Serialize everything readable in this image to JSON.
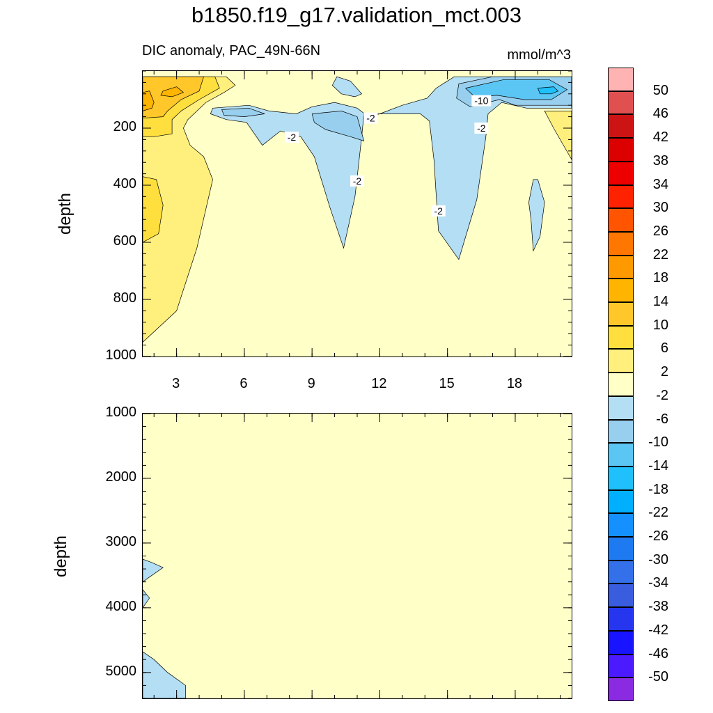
{
  "title": "b1850.f19_g17.validation_mct.003",
  "chart_data": [
    {
      "type": "heatmap",
      "panel": "upper",
      "left_title": "DIC anomaly, PAC_49N-66N",
      "right_title": "mmol/m^3",
      "ylabel": "depth",
      "xlabel": "",
      "xlim": [
        1.5,
        20.5
      ],
      "ylim": [
        1000,
        0
      ],
      "x_ticks": [
        "3",
        "6",
        "9",
        "12",
        "15",
        "18"
      ],
      "x_tick_values": [
        3,
        6,
        9,
        12,
        15,
        18
      ],
      "y_ticks": [
        "200",
        "400",
        "600",
        "800",
        "1000"
      ],
      "y_tick_values": [
        200,
        400,
        600,
        800,
        1000
      ],
      "contour_labels": [
        {
          "text": "-2",
          "x": 8.1,
          "y": 232
        },
        {
          "text": "-2",
          "x": 11.6,
          "y": 165
        },
        {
          "text": "-10",
          "x": 16.5,
          "y": 104
        },
        {
          "text": "-2",
          "x": 16.5,
          "y": 200
        },
        {
          "text": "-2",
          "x": 11.0,
          "y": 385
        },
        {
          "text": "-2",
          "x": 14.6,
          "y": 490
        }
      ],
      "regions": [
        {
          "level": "2",
          "pts": [
            [
              1.5,
              20
            ],
            [
              5.2,
              20
            ],
            [
              5.6,
              50
            ],
            [
              5.1,
              75
            ],
            [
              4.3,
              110
            ],
            [
              3.5,
              170
            ],
            [
              3.3,
              200
            ],
            [
              3.6,
              260
            ],
            [
              4.2,
              300
            ],
            [
              4.6,
              380
            ],
            [
              3.9,
              620
            ],
            [
              3.0,
              840
            ],
            [
              1.5,
              950
            ]
          ]
        },
        {
          "level": "2",
          "pts": [
            [
              20.5,
              140
            ],
            [
              19.3,
              140
            ],
            [
              19.7,
              200
            ],
            [
              20.5,
              310
            ]
          ]
        },
        {
          "level": "6",
          "pts": [
            [
              1.5,
              20
            ],
            [
              4.7,
              20
            ],
            [
              4.9,
              60
            ],
            [
              4.0,
              100
            ],
            [
              3.2,
              140
            ],
            [
              2.8,
              170
            ],
            [
              2.8,
              220
            ],
            [
              2.0,
              230
            ],
            [
              1.5,
              230
            ]
          ]
        },
        {
          "level": "6",
          "pts": [
            [
              1.5,
              370
            ],
            [
              2.1,
              380
            ],
            [
              2.4,
              470
            ],
            [
              2.2,
              570
            ],
            [
              1.5,
              600
            ]
          ]
        },
        {
          "level": "10",
          "pts": [
            [
              1.5,
              20
            ],
            [
              4.2,
              20
            ],
            [
              4.0,
              70
            ],
            [
              3.2,
              100
            ],
            [
              2.6,
              140
            ],
            [
              2.4,
              160
            ],
            [
              1.5,
              165
            ]
          ]
        },
        {
          "level": "14",
          "pts": [
            [
              1.5,
              75
            ],
            [
              1.8,
              70
            ],
            [
              2.0,
              110
            ],
            [
              1.9,
              130
            ],
            [
              1.5,
              140
            ]
          ]
        },
        {
          "level": "14",
          "pts": [
            [
              2.4,
              70
            ],
            [
              3.0,
              55
            ],
            [
              3.3,
              75
            ],
            [
              2.8,
              90
            ],
            [
              2.3,
              85
            ]
          ]
        },
        {
          "level": "-2",
          "pts": [
            [
              4.6,
              130
            ],
            [
              6.2,
              120
            ],
            [
              7.1,
              140
            ],
            [
              8.3,
              150
            ],
            [
              9.0,
              125
            ],
            [
              10.0,
              110
            ],
            [
              11.0,
              130
            ],
            [
              11.5,
              160
            ],
            [
              12.0,
              150
            ],
            [
              13.0,
              120
            ],
            [
              14.1,
              95
            ],
            [
              14.5,
              60
            ],
            [
              15.3,
              20
            ],
            [
              20.5,
              20
            ],
            [
              20.5,
              130
            ],
            [
              18.5,
              130
            ],
            [
              17.4,
              110
            ],
            [
              16.8,
              150
            ],
            [
              16.7,
              230
            ],
            [
              16.3,
              450
            ],
            [
              15.5,
              660
            ],
            [
              14.6,
              560
            ],
            [
              14.4,
              310
            ],
            [
              14.2,
              175
            ],
            [
              13.8,
              150
            ],
            [
              11.3,
              150
            ],
            [
              11.2,
              230
            ],
            [
              10.9,
              440
            ],
            [
              10.4,
              620
            ],
            [
              9.8,
              480
            ],
            [
              9.1,
              300
            ],
            [
              8.5,
              230
            ],
            [
              7.6,
              210
            ],
            [
              6.8,
              260
            ],
            [
              6.1,
              180
            ],
            [
              5.2,
              170
            ],
            [
              4.5,
              150
            ]
          ]
        },
        {
          "level": "-2",
          "pts": [
            [
              10.1,
              20
            ],
            [
              10.7,
              35
            ],
            [
              11.2,
              80
            ],
            [
              10.9,
              90
            ],
            [
              10.3,
              80
            ],
            [
              9.9,
              50
            ]
          ]
        },
        {
          "level": "-2",
          "pts": [
            [
              18.8,
              380
            ],
            [
              19.0,
              380
            ],
            [
              19.3,
              460
            ],
            [
              19.1,
              580
            ],
            [
              18.8,
              630
            ],
            [
              18.7,
              520
            ],
            [
              18.6,
              460
            ]
          ]
        },
        {
          "level": "-6",
          "pts": [
            [
              9.0,
              150
            ],
            [
              10.3,
              140
            ],
            [
              11.0,
              160
            ],
            [
              11.3,
              245
            ],
            [
              10.7,
              230
            ],
            [
              9.6,
              205
            ],
            [
              9.1,
              180
            ]
          ]
        },
        {
          "level": "-6",
          "pts": [
            [
              5.0,
              135
            ],
            [
              6.2,
              130
            ],
            [
              6.9,
              150
            ],
            [
              6.0,
              160
            ],
            [
              5.1,
              155
            ]
          ]
        },
        {
          "level": "-6",
          "pts": [
            [
              15.5,
              45
            ],
            [
              17.0,
              20
            ],
            [
              20.5,
              20
            ],
            [
              20.5,
              120
            ],
            [
              18.0,
              120
            ],
            [
              17.3,
              100
            ],
            [
              16.0,
              125
            ],
            [
              15.4,
              95
            ]
          ]
        },
        {
          "level": "-10",
          "pts": [
            [
              15.8,
              60
            ],
            [
              17.5,
              30
            ],
            [
              19.5,
              30
            ],
            [
              20.3,
              65
            ],
            [
              19.6,
              100
            ],
            [
              18.4,
              100
            ],
            [
              17.2,
              85
            ],
            [
              16.2,
              90
            ]
          ]
        },
        {
          "level": "-14",
          "pts": [
            [
              19.0,
              60
            ],
            [
              19.7,
              55
            ],
            [
              19.9,
              70
            ],
            [
              19.6,
              80
            ],
            [
              19.1,
              80
            ]
          ]
        }
      ]
    },
    {
      "type": "heatmap",
      "panel": "lower",
      "ylabel": "depth",
      "xlabel": "",
      "xlim": [
        1.5,
        20.5
      ],
      "ylim": [
        1000,
        5400
      ],
      "y_ticks": [
        "1000",
        "2000",
        "3000",
        "4000",
        "5000"
      ],
      "y_tick_values": [
        1000,
        2000,
        3000,
        4000,
        5000
      ],
      "x_tick_values": [
        3,
        6,
        9,
        12,
        15,
        18
      ],
      "regions": [
        {
          "level": "-2",
          "pts": [
            [
              1.5,
              3250
            ],
            [
              1.9,
              3300
            ],
            [
              2.4,
              3380
            ],
            [
              1.9,
              3500
            ],
            [
              1.5,
              3600
            ]
          ]
        },
        {
          "level": "-2",
          "pts": [
            [
              1.5,
              3720
            ],
            [
              1.8,
              3850
            ],
            [
              1.5,
              4000
            ]
          ]
        },
        {
          "level": "-2",
          "pts": [
            [
              1.5,
              4680
            ],
            [
              2.0,
              4800
            ],
            [
              2.6,
              5000
            ],
            [
              3.4,
              5200
            ],
            [
              3.4,
              5400
            ],
            [
              1.5,
              5400
            ]
          ]
        }
      ]
    }
  ],
  "colorbar": {
    "labels": [
      "50",
      "46",
      "42",
      "38",
      "34",
      "30",
      "26",
      "22",
      "18",
      "14",
      "10",
      "6",
      "2",
      "-2",
      "-6",
      "-10",
      "-14",
      "-18",
      "-22",
      "-26",
      "-30",
      "-34",
      "-38",
      "-42",
      "-46",
      "-50"
    ],
    "colors": [
      "#ffb3b3",
      "#e05050",
      "#cc1414",
      "#dd0000",
      "#ee0000",
      "#ff2200",
      "#ff5500",
      "#ff7700",
      "#ff9900",
      "#ffb400",
      "#ffc729",
      "#ffdf3d",
      "#fff07e",
      "#ffffc8",
      "#b3def3",
      "#98cfee",
      "#5bc6f4",
      "#1fc0fb",
      "#00b0ff",
      "#1590ff",
      "#1e7af0",
      "#3370ea",
      "#3a5cde",
      "#2636ef",
      "#1914ff",
      "#4c1aff",
      "#8a2be2"
    ],
    "level_colors": {
      "2": "#fff07e",
      "6": "#ffdf3d",
      "10": "#ffc729",
      "14": "#ffb400",
      "-2": "#b3def3",
      "-6": "#98cfee",
      "-10": "#5bc6f4",
      "-14": "#1fc0fb"
    }
  }
}
